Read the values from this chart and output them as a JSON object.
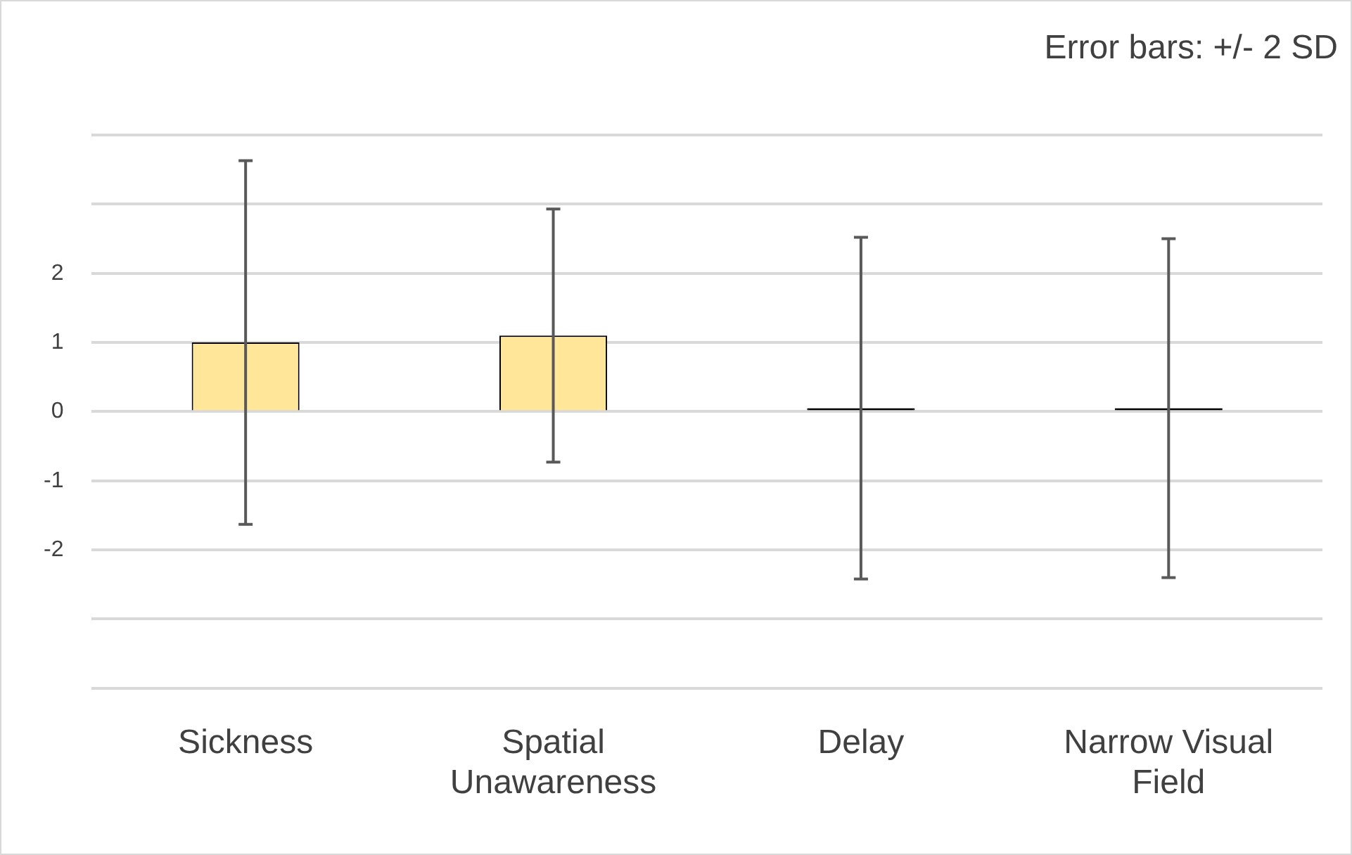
{
  "chart_data": {
    "type": "bar",
    "categories": [
      "Sickness",
      "Spatial Unawareness",
      "Delay",
      "Narrow Visual Field"
    ],
    "values": [
      1.0,
      1.1,
      0.05,
      0.05
    ],
    "errors": [
      2.63,
      1.83,
      2.47,
      2.45
    ],
    "colors": [
      "#ffe699",
      "#ffe699",
      "#000000",
      "#000000"
    ],
    "ylim": [
      -4,
      4
    ],
    "yticks": [
      {
        "value": -4,
        "label": null
      },
      {
        "value": -3,
        "label": null
      },
      -2,
      -1,
      0,
      1,
      2,
      {
        "value": 3,
        "label": null
      },
      {
        "value": 4,
        "label": null
      }
    ],
    "grid": "y",
    "legend": false,
    "annotations": [
      "Error bars: +/- 2 SD"
    ]
  }
}
